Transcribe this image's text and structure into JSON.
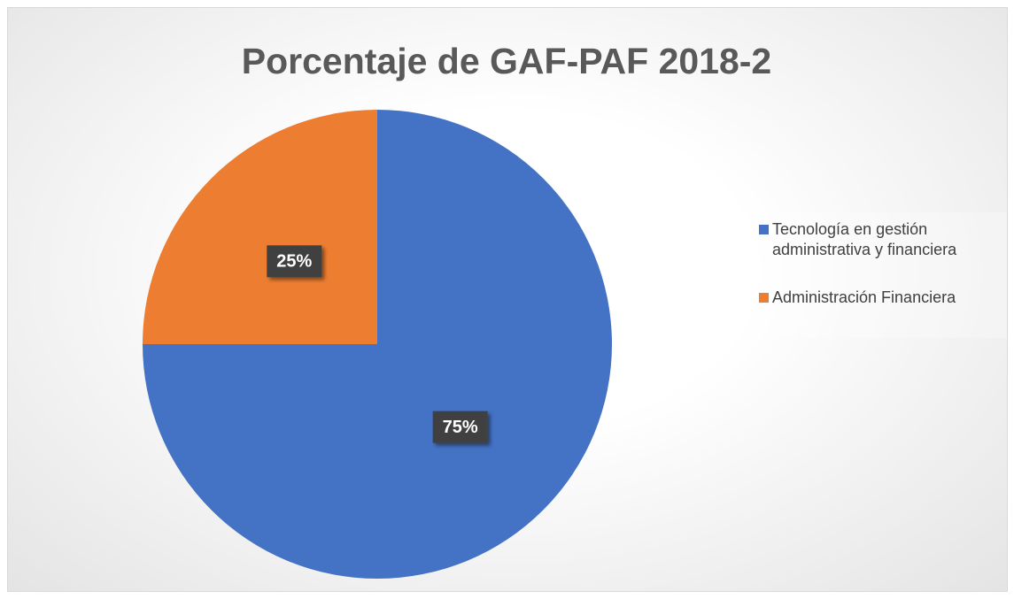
{
  "chart_data": {
    "type": "pie",
    "title": "Porcentaje de GAF-PAF 2018-2",
    "categories": [
      "Tecnología en gestión administrativa y financiera",
      "Administración Financiera"
    ],
    "values": [
      75,
      25
    ],
    "value_labels": [
      "75%",
      "25%"
    ],
    "colors": [
      "#4472c4",
      "#ed7d31"
    ],
    "legend": "right"
  }
}
